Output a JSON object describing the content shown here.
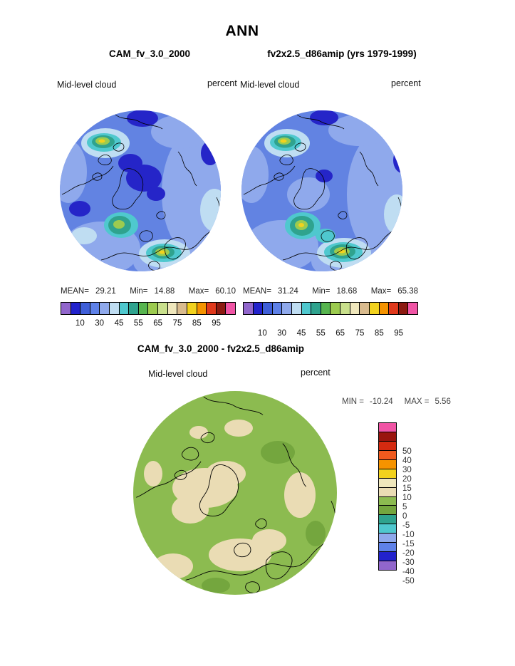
{
  "header": {
    "season": "ANN"
  },
  "panels": {
    "left": {
      "title": "CAM_fv_3.0_2000",
      "variable": "Mid-level cloud",
      "units": "percent",
      "stats": {
        "mean_label": "MEAN=",
        "mean": "29.21",
        "min_label": "Min=",
        "min": "14.88",
        "max_label": "Max=",
        "max": "60.10"
      }
    },
    "right": {
      "title": "fv2x2.5_d86amip (yrs 1979-1999)",
      "variable": "Mid-level cloud",
      "units": "percent",
      "stats": {
        "mean_label": "MEAN=",
        "mean": "31.24",
        "min_label": "Min=",
        "min": "18.68",
        "max_label": "Max=",
        "max": "65.38"
      }
    },
    "diff": {
      "title": "CAM_fv_3.0_2000 - fv2x2.5_d86amip",
      "variable": "Mid-level cloud",
      "units": "percent",
      "minmax": {
        "min_label": "MIN =",
        "min_value": "-10.24",
        "max_label": "MAX =",
        "max_value": "5.56"
      }
    }
  },
  "colorbars": {
    "top": {
      "colors": [
        "#9166CC",
        "#2222CC",
        "#3F5FD9",
        "#5E81E8",
        "#8FA9EC",
        "#BFDDF2",
        "#4FC8CE",
        "#2FA38E",
        "#57B54F",
        "#9CCB4F",
        "#C9E08C",
        "#EFE7BC",
        "#D9BB8E",
        "#F2D21E",
        "#F59300",
        "#E0391C",
        "#8C1A11",
        "#F054A5"
      ],
      "ticks": [
        "10",
        "30",
        "45",
        "55",
        "65",
        "75",
        "85",
        "95"
      ]
    },
    "diff": {
      "colors": [
        "#F054A5",
        "#99150E",
        "#D42A10",
        "#F05A1E",
        "#F59300",
        "#F2D21E",
        "#EFE7BC",
        "#EADCB4",
        "#8CBB50",
        "#74A63E",
        "#2FA38E",
        "#4FC8CE",
        "#8FA9EC",
        "#5E81E8",
        "#2222CC",
        "#9166CC"
      ],
      "ticks": [
        "50",
        "40",
        "30",
        "20",
        "15",
        "10",
        "5",
        "0",
        "-5",
        "-10",
        "-15",
        "-20",
        "-30",
        "-40",
        "-50"
      ]
    }
  },
  "palette": {
    "map_base_blue": "#6283E2",
    "blue_light": "#8FA9EC",
    "blue_pale": "#BFDDF2",
    "navy": "#2525C8",
    "cyan": "#4FC8CE",
    "teal": "#2FA38E",
    "green": "#57B54F",
    "yellow_green": "#9CCB4F",
    "yellow": "#F2D21E",
    "diff_base_green": "#8CBB50",
    "diff_green_dark": "#74A63E",
    "tan": "#EADCB4",
    "coastline": "#000000"
  },
  "chart_data": [
    {
      "type": "heatmap",
      "subtype": "filled-contour-map",
      "projection": "north-polar",
      "season": "ANN",
      "title": "CAM_fv_3.0_2000",
      "variable": "Mid-level cloud",
      "units": "percent",
      "stats": {
        "mean": 29.21,
        "min": 14.88,
        "max": 60.1
      },
      "colorbar_tick_levels": [
        10,
        30,
        45,
        55,
        65,
        75,
        85,
        95
      ],
      "legend_position": "bottom"
    },
    {
      "type": "heatmap",
      "subtype": "filled-contour-map",
      "projection": "north-polar",
      "season": "ANN",
      "title": "fv2x2.5_d86amip (yrs 1979-1999)",
      "variable": "Mid-level cloud",
      "units": "percent",
      "stats": {
        "mean": 31.24,
        "min": 18.68,
        "max": 65.38
      },
      "colorbar_tick_levels": [
        10,
        30,
        45,
        55,
        65,
        75,
        85,
        95
      ],
      "legend_position": "bottom"
    },
    {
      "type": "heatmap",
      "subtype": "filled-contour-difference-map",
      "projection": "north-polar",
      "season": "ANN",
      "title": "CAM_fv_3.0_2000 - fv2x2.5_d86amip",
      "variable": "Mid-level cloud",
      "units": "percent",
      "stats": {
        "min": -10.24,
        "max": 5.56
      },
      "colorbar_tick_levels": [
        50,
        40,
        30,
        20,
        15,
        10,
        5,
        0,
        -5,
        -10,
        -15,
        -20,
        -30,
        -40,
        -50
      ],
      "legend_position": "right"
    }
  ]
}
